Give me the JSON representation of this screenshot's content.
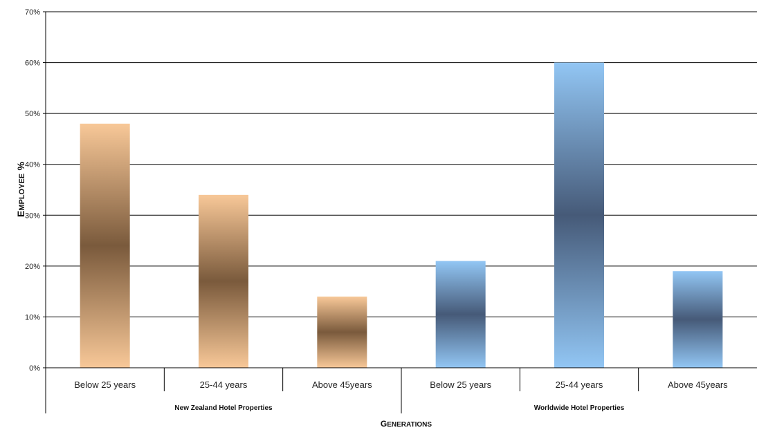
{
  "chart_data": {
    "type": "bar",
    "xlabel": "Generations",
    "ylabel": "Employee %",
    "ylim": [
      0,
      70
    ],
    "yticks": [
      "0%",
      "10%",
      "20%",
      "30%",
      "40%",
      "50%",
      "60%",
      "70%"
    ],
    "grid": true,
    "groups": [
      {
        "name": "New Zealand Hotel Properties",
        "color": "#f8c898",
        "dark": "#7a5a3c"
      },
      {
        "name": "Worldwide Hotel Properties",
        "color": "#92c6f4",
        "dark": "#465a78"
      }
    ],
    "bars": [
      {
        "group": 0,
        "category": "Below 25 years",
        "value": 48
      },
      {
        "group": 0,
        "category": "25-44 years",
        "value": 34
      },
      {
        "group": 0,
        "category": "Above 45years",
        "value": 14
      },
      {
        "group": 1,
        "category": "Below 25 years",
        "value": 21
      },
      {
        "group": 1,
        "category": "25-44 years",
        "value": 60
      },
      {
        "group": 1,
        "category": "Above 45years",
        "value": 19
      }
    ]
  }
}
